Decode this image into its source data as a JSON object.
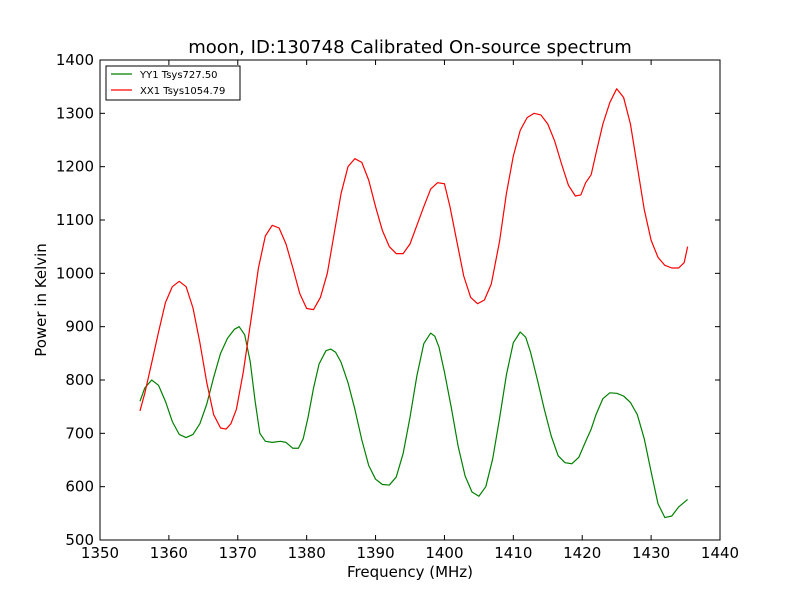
{
  "chart_data": {
    "type": "line",
    "title": "moon, ID:130748 Calibrated On-source spectrum",
    "xlabel": "Frequency (MHz)",
    "ylabel": "Power in Kelvin",
    "xlim": [
      1350,
      1440
    ],
    "ylim": [
      500,
      1400
    ],
    "xticks": [
      1350,
      1360,
      1370,
      1380,
      1390,
      1400,
      1410,
      1420,
      1430,
      1440
    ],
    "yticks": [
      500,
      600,
      700,
      800,
      900,
      1000,
      1100,
      1200,
      1300,
      1400
    ],
    "grid": false,
    "legend_position": "top-left",
    "series": [
      {
        "name": "YY1 Tsys727.50",
        "color": "#008000",
        "points": [
          [
            1355.8,
            760
          ],
          [
            1356.5,
            785
          ],
          [
            1357.5,
            800
          ],
          [
            1358.5,
            790
          ],
          [
            1359.5,
            760
          ],
          [
            1360.5,
            722
          ],
          [
            1361.5,
            698
          ],
          [
            1362.5,
            692
          ],
          [
            1363.5,
            698
          ],
          [
            1364.5,
            718
          ],
          [
            1365.5,
            755
          ],
          [
            1366.5,
            805
          ],
          [
            1367.5,
            850
          ],
          [
            1368.5,
            878
          ],
          [
            1369.5,
            895
          ],
          [
            1370.2,
            900
          ],
          [
            1371.0,
            885
          ],
          [
            1371.8,
            835
          ],
          [
            1372.5,
            762
          ],
          [
            1373.2,
            700
          ],
          [
            1374.0,
            685
          ],
          [
            1375.0,
            683
          ],
          [
            1376.2,
            685
          ],
          [
            1377.0,
            683
          ],
          [
            1378.0,
            672
          ],
          [
            1378.8,
            672
          ],
          [
            1379.5,
            690
          ],
          [
            1380.2,
            730
          ],
          [
            1381.0,
            785
          ],
          [
            1381.8,
            830
          ],
          [
            1382.8,
            855
          ],
          [
            1383.5,
            858
          ],
          [
            1384.2,
            852
          ],
          [
            1385.0,
            833
          ],
          [
            1386.0,
            795
          ],
          [
            1387.0,
            745
          ],
          [
            1388.0,
            688
          ],
          [
            1389.0,
            640
          ],
          [
            1390.0,
            614
          ],
          [
            1391.0,
            604
          ],
          [
            1392.0,
            603
          ],
          [
            1393.0,
            618
          ],
          [
            1394.0,
            662
          ],
          [
            1395.0,
            730
          ],
          [
            1396.0,
            808
          ],
          [
            1397.0,
            868
          ],
          [
            1398.0,
            888
          ],
          [
            1398.6,
            882
          ],
          [
            1399.2,
            862
          ],
          [
            1400.0,
            815
          ],
          [
            1401.0,
            748
          ],
          [
            1402.0,
            675
          ],
          [
            1403.0,
            620
          ],
          [
            1404.0,
            590
          ],
          [
            1405.0,
            582
          ],
          [
            1406.0,
            600
          ],
          [
            1407.0,
            652
          ],
          [
            1408.0,
            728
          ],
          [
            1409.0,
            810
          ],
          [
            1410.0,
            870
          ],
          [
            1411.0,
            890
          ],
          [
            1411.8,
            880
          ],
          [
            1412.5,
            852
          ],
          [
            1413.5,
            800
          ],
          [
            1414.5,
            745
          ],
          [
            1415.5,
            695
          ],
          [
            1416.5,
            658
          ],
          [
            1417.5,
            645
          ],
          [
            1418.5,
            643
          ],
          [
            1419.5,
            655
          ],
          [
            1420.5,
            685
          ],
          [
            1421.3,
            708
          ],
          [
            1422.0,
            735
          ],
          [
            1423.0,
            765
          ],
          [
            1424.0,
            776
          ],
          [
            1425.0,
            775
          ],
          [
            1426.0,
            770
          ],
          [
            1427.0,
            758
          ],
          [
            1428.0,
            735
          ],
          [
            1429.0,
            690
          ],
          [
            1430.0,
            628
          ],
          [
            1431.0,
            568
          ],
          [
            1432.0,
            542
          ],
          [
            1433.0,
            545
          ],
          [
            1434.0,
            562
          ],
          [
            1435.3,
            576
          ]
        ]
      },
      {
        "name": "XX1 Tsys1054.79",
        "color": "#ff0000",
        "points": [
          [
            1355.8,
            742
          ],
          [
            1356.5,
            775
          ],
          [
            1357.5,
            832
          ],
          [
            1358.5,
            890
          ],
          [
            1359.5,
            945
          ],
          [
            1360.5,
            975
          ],
          [
            1361.5,
            985
          ],
          [
            1362.5,
            975
          ],
          [
            1363.5,
            935
          ],
          [
            1364.5,
            870
          ],
          [
            1365.5,
            795
          ],
          [
            1366.5,
            735
          ],
          [
            1367.5,
            710
          ],
          [
            1368.3,
            708
          ],
          [
            1369.0,
            718
          ],
          [
            1369.8,
            745
          ],
          [
            1370.8,
            815
          ],
          [
            1372.0,
            920
          ],
          [
            1373.0,
            1010
          ],
          [
            1374.0,
            1070
          ],
          [
            1375.0,
            1090
          ],
          [
            1376.0,
            1085
          ],
          [
            1377.0,
            1055
          ],
          [
            1378.0,
            1010
          ],
          [
            1379.0,
            962
          ],
          [
            1380.0,
            934
          ],
          [
            1381.0,
            932
          ],
          [
            1382.0,
            955
          ],
          [
            1383.0,
            1000
          ],
          [
            1384.0,
            1075
          ],
          [
            1385.0,
            1150
          ],
          [
            1386.0,
            1200
          ],
          [
            1387.0,
            1215
          ],
          [
            1388.0,
            1208
          ],
          [
            1389.0,
            1175
          ],
          [
            1390.0,
            1125
          ],
          [
            1391.0,
            1080
          ],
          [
            1392.0,
            1050
          ],
          [
            1393.0,
            1037
          ],
          [
            1394.0,
            1037
          ],
          [
            1395.0,
            1055
          ],
          [
            1396.0,
            1090
          ],
          [
            1397.0,
            1125
          ],
          [
            1398.0,
            1158
          ],
          [
            1399.0,
            1170
          ],
          [
            1400.0,
            1168
          ],
          [
            1400.8,
            1125
          ],
          [
            1401.8,
            1060
          ],
          [
            1402.8,
            995
          ],
          [
            1403.8,
            955
          ],
          [
            1404.8,
            943
          ],
          [
            1405.8,
            950
          ],
          [
            1406.8,
            980
          ],
          [
            1408.0,
            1060
          ],
          [
            1409.0,
            1150
          ],
          [
            1410.0,
            1220
          ],
          [
            1411.0,
            1268
          ],
          [
            1412.0,
            1292
          ],
          [
            1413.0,
            1300
          ],
          [
            1414.0,
            1297
          ],
          [
            1415.0,
            1280
          ],
          [
            1416.0,
            1248
          ],
          [
            1417.0,
            1205
          ],
          [
            1418.0,
            1165
          ],
          [
            1419.0,
            1145
          ],
          [
            1419.8,
            1147
          ],
          [
            1420.5,
            1170
          ],
          [
            1421.3,
            1185
          ],
          [
            1422.0,
            1225
          ],
          [
            1423.0,
            1280
          ],
          [
            1424.0,
            1320
          ],
          [
            1425.0,
            1346
          ],
          [
            1426.0,
            1330
          ],
          [
            1427.0,
            1280
          ],
          [
            1428.0,
            1200
          ],
          [
            1429.0,
            1120
          ],
          [
            1430.0,
            1062
          ],
          [
            1431.0,
            1030
          ],
          [
            1432.0,
            1015
          ],
          [
            1433.0,
            1010
          ],
          [
            1434.0,
            1010
          ],
          [
            1434.8,
            1020
          ],
          [
            1435.3,
            1050
          ]
        ]
      }
    ]
  }
}
